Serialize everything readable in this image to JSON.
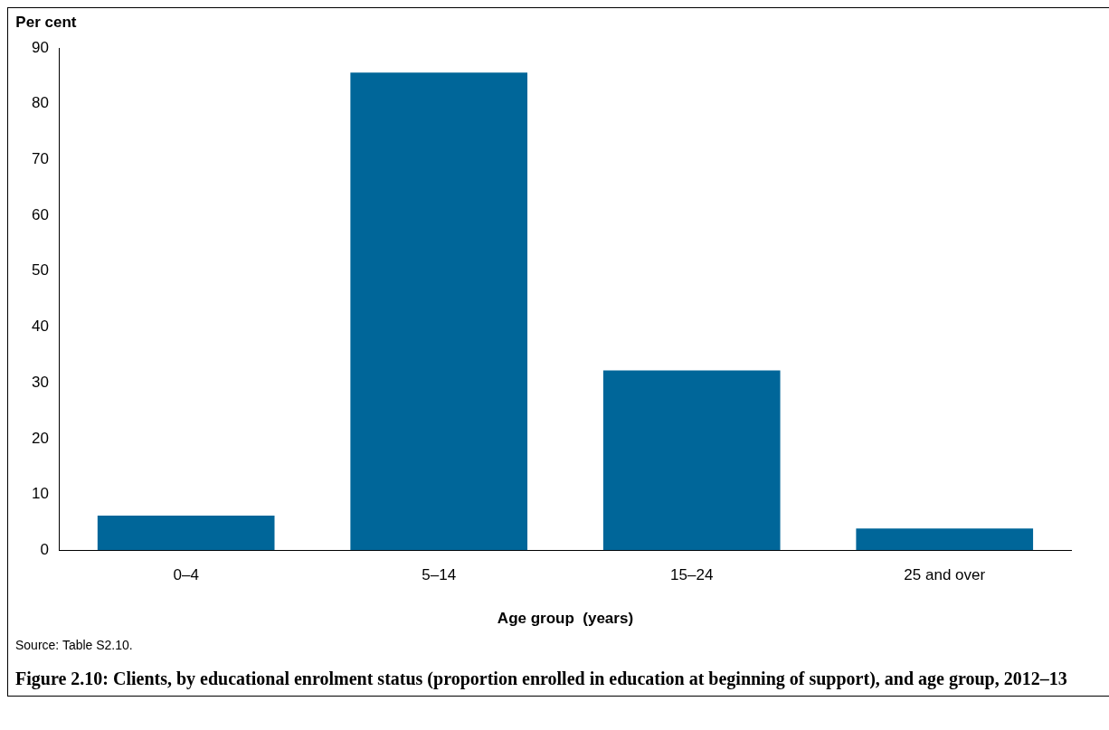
{
  "chart_data": {
    "type": "bar",
    "title": "Figure 2.10: Clients, by educational enrolment status (proportion enrolled in education at beginning of support), and age group, 2012–13",
    "ylabel": "Per cent",
    "xlabel": "Age group  (years)",
    "categories": [
      "0–4",
      "5–14",
      "15–24",
      "25 and over"
    ],
    "values": [
      6.2,
      85.6,
      32.2,
      3.9
    ],
    "color": "#006699",
    "ylim": [
      0,
      90
    ],
    "yticks": [
      0,
      10,
      20,
      30,
      40,
      50,
      60,
      70,
      80,
      90
    ],
    "grid": false,
    "legend": false,
    "annotations": [
      "Source: Table S2.10."
    ]
  }
}
